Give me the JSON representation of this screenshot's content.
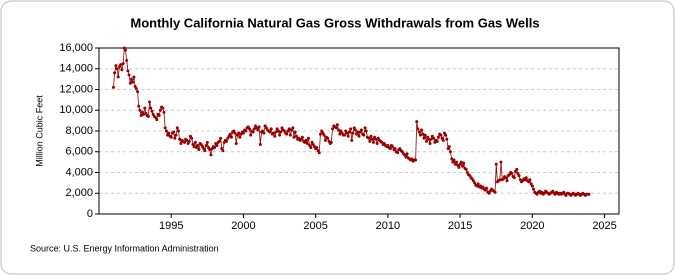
{
  "chart_data": {
    "type": "line",
    "title": "Monthly California Natural Gas Gross Withdrawals from Gas Wells",
    "y_label": "Million Cubic Feet",
    "source": "Source: U.S. Energy Information Administration",
    "xlim": [
      1990,
      2026
    ],
    "ylim": [
      0,
      16000
    ],
    "xticks": [
      1995,
      2000,
      2005,
      2010,
      2015,
      2020,
      2025
    ],
    "yticks": [
      0,
      {
        "value": 2000,
        "label": "2,000"
      },
      {
        "value": 4000,
        "label": "4,000"
      },
      {
        "value": 6000,
        "label": "6,000"
      },
      {
        "value": 8000,
        "label": "8,000"
      },
      {
        "value": 10000,
        "label": "10,000"
      },
      {
        "value": 12000,
        "label": "12,000"
      },
      {
        "value": 14000,
        "label": "14,000"
      },
      {
        "value": 16000,
        "label": "16,000"
      }
    ],
    "grid": true,
    "x": [
      1991.0,
      1991.08,
      1991.17,
      1991.25,
      1991.33,
      1991.42,
      1991.5,
      1991.58,
      1991.67,
      1991.75,
      1991.83,
      1991.92,
      1992.0,
      1992.08,
      1992.17,
      1992.25,
      1992.33,
      1992.42,
      1992.5,
      1992.58,
      1992.67,
      1992.75,
      1992.83,
      1992.92,
      1993.0,
      1993.08,
      1993.17,
      1993.25,
      1993.33,
      1993.42,
      1993.5,
      1993.58,
      1993.67,
      1993.75,
      1993.83,
      1993.92,
      1994.0,
      1994.08,
      1994.17,
      1994.25,
      1994.33,
      1994.42,
      1994.5,
      1994.58,
      1994.67,
      1994.75,
      1994.83,
      1994.92,
      1995.0,
      1995.08,
      1995.17,
      1995.25,
      1995.33,
      1995.42,
      1995.5,
      1995.58,
      1995.67,
      1995.75,
      1995.83,
      1995.92,
      1996.0,
      1996.08,
      1996.17,
      1996.25,
      1996.33,
      1996.42,
      1996.5,
      1996.58,
      1996.67,
      1996.75,
      1996.83,
      1996.92,
      1997.0,
      1997.08,
      1997.17,
      1997.25,
      1997.33,
      1997.42,
      1997.5,
      1997.58,
      1997.67,
      1997.75,
      1997.83,
      1997.92,
      1998.0,
      1998.08,
      1998.17,
      1998.25,
      1998.33,
      1998.42,
      1998.5,
      1998.58,
      1998.67,
      1998.75,
      1998.83,
      1998.92,
      1999.0,
      1999.08,
      1999.17,
      1999.25,
      1999.33,
      1999.42,
      1999.5,
      1999.58,
      1999.67,
      1999.75,
      1999.83,
      1999.92,
      2000.0,
      2000.08,
      2000.17,
      2000.25,
      2000.33,
      2000.42,
      2000.5,
      2000.58,
      2000.67,
      2000.75,
      2000.83,
      2000.92,
      2001.0,
      2001.08,
      2001.17,
      2001.25,
      2001.33,
      2001.42,
      2001.5,
      2001.58,
      2001.67,
      2001.75,
      2001.83,
      2001.92,
      2002.0,
      2002.08,
      2002.17,
      2002.25,
      2002.33,
      2002.42,
      2002.5,
      2002.58,
      2002.67,
      2002.75,
      2002.83,
      2002.92,
      2003.0,
      2003.08,
      2003.17,
      2003.25,
      2003.33,
      2003.42,
      2003.5,
      2003.58,
      2003.67,
      2003.75,
      2003.83,
      2003.92,
      2004.0,
      2004.08,
      2004.17,
      2004.25,
      2004.33,
      2004.42,
      2004.5,
      2004.58,
      2004.67,
      2004.75,
      2004.83,
      2004.92,
      2005.0,
      2005.08,
      2005.17,
      2005.25,
      2005.33,
      2005.42,
      2005.5,
      2005.58,
      2005.67,
      2005.75,
      2005.83,
      2005.92,
      2006.0,
      2006.08,
      2006.17,
      2006.25,
      2006.33,
      2006.42,
      2006.5,
      2006.58,
      2006.67,
      2006.75,
      2006.83,
      2006.92,
      2007.0,
      2007.08,
      2007.17,
      2007.25,
      2007.33,
      2007.42,
      2007.5,
      2007.58,
      2007.67,
      2007.75,
      2007.83,
      2007.92,
      2008.0,
      2008.08,
      2008.17,
      2008.25,
      2008.33,
      2008.42,
      2008.5,
      2008.58,
      2008.67,
      2008.75,
      2008.83,
      2008.92,
      2009.0,
      2009.08,
      2009.17,
      2009.25,
      2009.33,
      2009.42,
      2009.5,
      2009.58,
      2009.67,
      2009.75,
      2009.83,
      2009.92,
      2010.0,
      2010.08,
      2010.17,
      2010.25,
      2010.33,
      2010.42,
      2010.5,
      2010.58,
      2010.67,
      2010.75,
      2010.83,
      2010.92,
      2011.0,
      2011.08,
      2011.17,
      2011.25,
      2011.33,
      2011.42,
      2011.5,
      2011.58,
      2011.67,
      2011.75,
      2011.83,
      2011.92,
      2012.0,
      2012.08,
      2012.17,
      2012.25,
      2012.33,
      2012.42,
      2012.5,
      2012.58,
      2012.67,
      2012.75,
      2012.83,
      2012.92,
      2013.0,
      2013.08,
      2013.17,
      2013.25,
      2013.33,
      2013.42,
      2013.5,
      2013.58,
      2013.67,
      2013.75,
      2013.83,
      2013.92,
      2014.0,
      2014.08,
      2014.17,
      2014.25,
      2014.33,
      2014.42,
      2014.5,
      2014.58,
      2014.67,
      2014.75,
      2014.83,
      2014.92,
      2015.0,
      2015.08,
      2015.17,
      2015.25,
      2015.33,
      2015.42,
      2015.5,
      2015.58,
      2015.67,
      2015.75,
      2015.83,
      2015.92,
      2016.0,
      2016.08,
      2016.17,
      2016.25,
      2016.33,
      2016.42,
      2016.5,
      2016.58,
      2016.67,
      2016.75,
      2016.83,
      2016.92,
      2017.0,
      2017.08,
      2017.17,
      2017.25,
      2017.33,
      2017.42,
      2017.5,
      2017.58,
      2017.67,
      2017.75,
      2017.83,
      2017.92,
      2018.0,
      2018.08,
      2018.17,
      2018.25,
      2018.33,
      2018.42,
      2018.5,
      2018.58,
      2018.67,
      2018.75,
      2018.83,
      2018.92,
      2019.0,
      2019.08,
      2019.17,
      2019.25,
      2019.33,
      2019.42,
      2019.5,
      2019.58,
      2019.67,
      2019.75,
      2019.83,
      2019.92,
      2020.0,
      2020.08,
      2020.17,
      2020.25,
      2020.33,
      2020.42,
      2020.5,
      2020.58,
      2020.67,
      2020.75,
      2020.83,
      2020.92,
      2021.0,
      2021.08,
      2021.17,
      2021.25,
      2021.33,
      2021.42,
      2021.5,
      2021.58,
      2021.67,
      2021.75,
      2021.83,
      2021.92,
      2022.0,
      2022.08,
      2022.17,
      2022.25,
      2022.33,
      2022.42,
      2022.5,
      2022.58,
      2022.67,
      2022.75,
      2022.83,
      2022.92,
      2023.0,
      2023.08,
      2023.17,
      2023.25,
      2023.33,
      2023.42,
      2023.5,
      2023.58,
      2023.67,
      2023.75,
      2023.83,
      2023.92
    ],
    "series": [
      {
        "color": "#990000",
        "values": [
          12200,
          13600,
          14300,
          14000,
          13200,
          14200,
          14400,
          13900,
          14500,
          16000,
          15800,
          14800,
          13800,
          13400,
          12600,
          13000,
          12700,
          13200,
          12300,
          12100,
          11800,
          10400,
          10000,
          9500,
          9800,
          9600,
          10200,
          9700,
          9500,
          9400,
          10800,
          10200,
          9900,
          9600,
          9400,
          9300,
          9100,
          9600,
          9500,
          10000,
          10300,
          10200,
          9800,
          8300,
          8000,
          7600,
          7800,
          7500,
          7400,
          7800,
          7900,
          7300,
          7600,
          8300,
          8000,
          7200,
          6800,
          7100,
          7000,
          6900,
          7200,
          7100,
          6800,
          7000,
          7500,
          7300,
          6700,
          6500,
          6900,
          6400,
          6600,
          6200,
          6800,
          6700,
          6500,
          6300,
          6100,
          6600,
          6900,
          6400,
          6200,
          5700,
          6300,
          6500,
          6400,
          6800,
          6600,
          6900,
          7000,
          7300,
          6300,
          6100,
          6900,
          7100,
          7000,
          7300,
          7500,
          7700,
          7400,
          7900,
          8000,
          7800,
          6800,
          7600,
          7800,
          7400,
          7700,
          7900,
          7800,
          8100,
          8000,
          8300,
          8400,
          8200,
          7600,
          8000,
          7900,
          8200,
          8500,
          8300,
          8100,
          8400,
          6700,
          7900,
          8000,
          7800,
          8500,
          8300,
          8100,
          8000,
          7900,
          8200,
          7700,
          7800,
          7500,
          7900,
          8200,
          8000,
          7600,
          7900,
          8300,
          8100,
          8000,
          7800,
          7700,
          8000,
          8200,
          7600,
          8100,
          8300,
          7400,
          7900,
          7500,
          7200,
          7300,
          7100,
          7200,
          7400,
          7000,
          6900,
          7100,
          6800,
          7300,
          6600,
          6400,
          6900,
          6700,
          6500,
          6300,
          6400,
          6100,
          5900,
          7700,
          8000,
          7800,
          7600,
          7100,
          7400,
          7300,
          7000,
          6800,
          6900,
          8200,
          8500,
          8400,
          8300,
          8600,
          8100,
          7700,
          8000,
          7800,
          7600,
          7600,
          8000,
          7800,
          7500,
          7900,
          8200,
          7100,
          7800,
          8300,
          8100,
          7700,
          7900,
          7500,
          7900,
          8100,
          7700,
          7600,
          8300,
          8000,
          7400,
          7300,
          7000,
          7500,
          7200,
          6900,
          7400,
          7200,
          6800,
          7300,
          7100,
          7000,
          6900,
          6700,
          6800,
          6600,
          6500,
          6600,
          6400,
          6300,
          6600,
          6500,
          6200,
          6300,
          6000,
          5900,
          6200,
          6300,
          6100,
          6000,
          5800,
          5700,
          5500,
          5800,
          5400,
          5300,
          5200,
          5300,
          5100,
          5200,
          5200,
          8900,
          8200,
          7900,
          7600,
          8100,
          7700,
          7300,
          7600,
          7000,
          7400,
          7200,
          6800,
          7200,
          7500,
          7300,
          6900,
          7100,
          7000,
          7400,
          7700,
          7600,
          7300,
          7100,
          7800,
          7600,
          7200,
          6300,
          6500,
          6000,
          5300,
          5000,
          5200,
          4800,
          5000,
          4700,
          4500,
          4800,
          5000,
          4600,
          4900,
          4400,
          4300,
          4000,
          3800,
          3700,
          3500,
          3400,
          3200,
          3000,
          2800,
          2700,
          2900,
          2600,
          2700,
          2500,
          2600,
          2400,
          2300,
          2500,
          2100,
          2000,
          2200,
          2400,
          2300,
          2200,
          2100,
          4800,
          3100,
          3200,
          3300,
          5000,
          3300,
          3400,
          3600,
          3500,
          3200,
          3700,
          3800,
          4000,
          3900,
          3600,
          3500,
          4100,
          4300,
          3900,
          3700,
          3300,
          3100,
          3200,
          3400,
          3300,
          3500,
          3200,
          3100,
          3300,
          2900,
          2700,
          2400,
          2100,
          2000,
          1900,
          2100,
          2200,
          2000,
          2100,
          1900,
          2000,
          2200,
          2100,
          2000,
          1900,
          2000,
          2100,
          2200,
          2000,
          1900,
          2100,
          2000,
          1900,
          2000,
          1900,
          2000,
          2100,
          1900,
          1800,
          2000,
          2000,
          1900,
          1800,
          1900,
          2000,
          1900,
          1800,
          1900,
          2000,
          1900,
          1800,
          1900,
          2000,
          1900,
          1800,
          1900,
          1900,
          1900
        ]
      }
    ]
  }
}
